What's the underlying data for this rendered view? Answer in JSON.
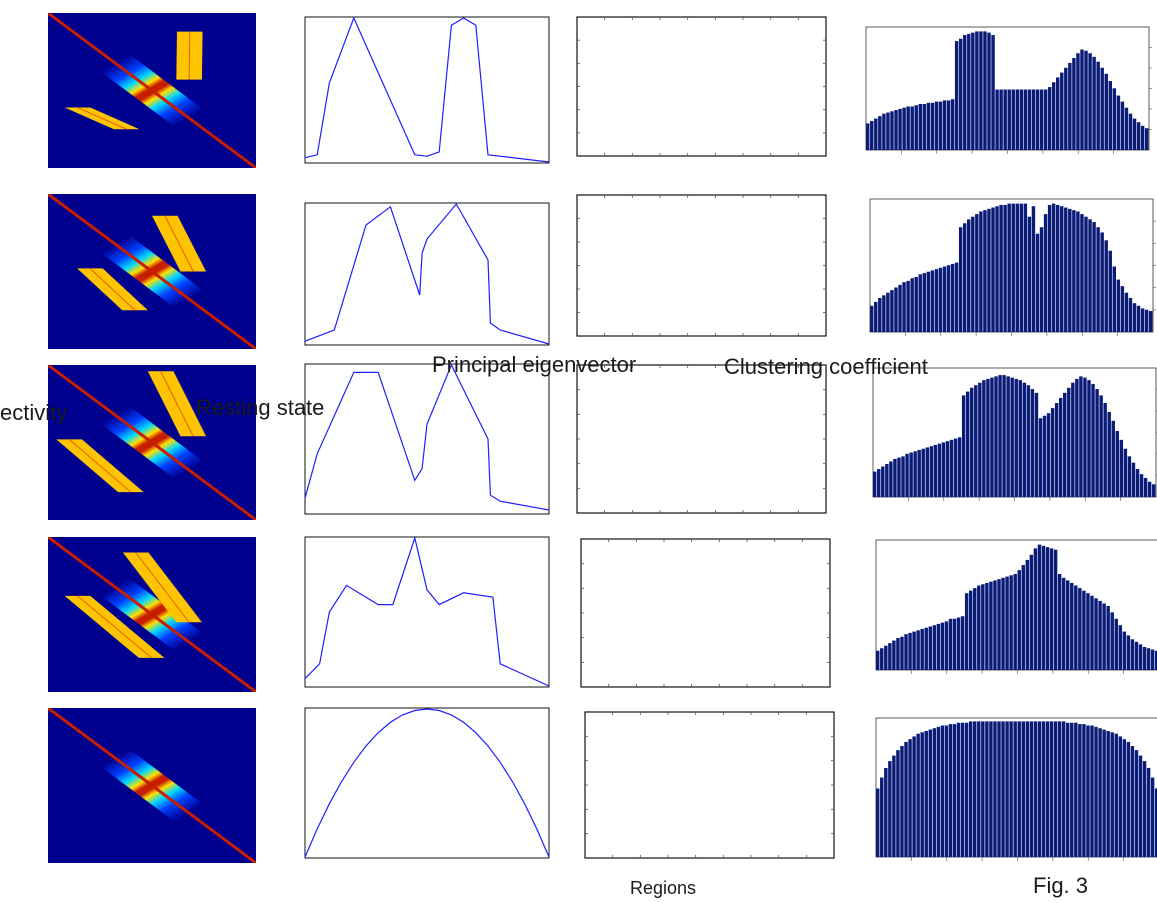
{
  "labels": {
    "connectivity": "ectivity",
    "resting_state": "Resting  state",
    "principal_eigenvector": "Principal eigenvector",
    "clustering_coefficient": "Clustering coefficient",
    "regions": "Regions",
    "fig": "Fig. 3"
  },
  "colors": {
    "matrix_background": "#00008f",
    "diagonal_band": "#c81e00",
    "block": "#ffc400",
    "eigen_line": "#1f1fff",
    "bar_fill": "#0b1c78",
    "bar_gap": "#ffffff"
  },
  "chart_data": [
    {
      "type": "line",
      "row": 1,
      "title": "",
      "xlabel": "",
      "ylabel": "",
      "x": [
        0,
        0.05,
        0.1,
        0.2,
        0.45,
        0.5,
        0.55,
        0.6,
        0.65,
        0.7,
        0.75,
        1
      ],
      "y": [
        0.03,
        0.05,
        0.55,
        1.0,
        0.05,
        0.04,
        0.07,
        0.95,
        1.0,
        0.95,
        0.05,
        0.0
      ]
    },
    {
      "type": "line",
      "row": 2,
      "title": "",
      "xlabel": "",
      "ylabel": "",
      "x": [
        0,
        0.12,
        0.25,
        0.35,
        0.47,
        0.48,
        0.5,
        0.62,
        0.75,
        0.76,
        0.8,
        1
      ],
      "y": [
        0.02,
        0.1,
        0.85,
        0.98,
        0.35,
        0.65,
        0.75,
        1.0,
        0.6,
        0.15,
        0.1,
        0.0
      ]
    },
    {
      "type": "line",
      "row": 3,
      "title": "",
      "xlabel": "",
      "ylabel": "",
      "x": [
        0,
        0.05,
        0.2,
        0.3,
        0.45,
        0.48,
        0.5,
        0.6,
        0.75,
        0.76,
        0.8,
        1
      ],
      "y": [
        0.1,
        0.4,
        0.95,
        0.95,
        0.22,
        0.3,
        0.6,
        1.0,
        0.5,
        0.12,
        0.08,
        0.02
      ]
    },
    {
      "type": "line",
      "row": 4,
      "title": "",
      "xlabel": "",
      "ylabel": "",
      "x": [
        0,
        0.06,
        0.1,
        0.17,
        0.3,
        0.36,
        0.45,
        0.5,
        0.55,
        0.65,
        0.77,
        0.8,
        1
      ],
      "y": [
        0.05,
        0.15,
        0.5,
        0.68,
        0.55,
        0.55,
        1.0,
        0.65,
        0.55,
        0.63,
        0.6,
        0.15,
        0.0
      ]
    },
    {
      "type": "line",
      "row": 5,
      "title": "",
      "xlabel": "",
      "ylabel": "",
      "x": [
        0,
        0.05,
        0.1,
        0.15,
        0.2,
        0.25,
        0.3,
        0.35,
        0.4,
        0.45,
        0.5,
        0.55,
        0.6,
        0.65,
        0.7,
        0.75,
        0.8,
        0.85,
        0.9,
        0.95,
        1
      ],
      "y": [
        0,
        0.19,
        0.36,
        0.51,
        0.64,
        0.75,
        0.84,
        0.91,
        0.96,
        0.99,
        1,
        0.99,
        0.96,
        0.91,
        0.84,
        0.75,
        0.64,
        0.51,
        0.36,
        0.19,
        0
      ]
    },
    {
      "type": "bar",
      "row": 1,
      "title": "",
      "xlabel": "",
      "ylabel": "",
      "values": [
        0.22,
        0.24,
        0.26,
        0.28,
        0.3,
        0.31,
        0.32,
        0.33,
        0.34,
        0.35,
        0.36,
        0.36,
        0.37,
        0.38,
        0.38,
        0.39,
        0.39,
        0.4,
        0.4,
        0.41,
        0.41,
        0.42,
        0.9,
        0.92,
        0.95,
        0.96,
        0.97,
        0.98,
        0.98,
        0.98,
        0.97,
        0.95,
        0.5,
        0.5,
        0.5,
        0.5,
        0.5,
        0.5,
        0.5,
        0.5,
        0.5,
        0.5,
        0.5,
        0.5,
        0.5,
        0.52,
        0.56,
        0.6,
        0.64,
        0.68,
        0.72,
        0.76,
        0.8,
        0.83,
        0.82,
        0.8,
        0.77,
        0.73,
        0.68,
        0.63,
        0.57,
        0.51,
        0.45,
        0.4,
        0.35,
        0.3,
        0.26,
        0.23,
        0.2,
        0.18
      ]
    },
    {
      "type": "bar",
      "row": 2,
      "title": "",
      "xlabel": "",
      "ylabel": "",
      "values": [
        0.2,
        0.23,
        0.26,
        0.28,
        0.3,
        0.32,
        0.34,
        0.36,
        0.38,
        0.39,
        0.41,
        0.42,
        0.44,
        0.45,
        0.46,
        0.47,
        0.48,
        0.49,
        0.5,
        0.51,
        0.52,
        0.53,
        0.8,
        0.83,
        0.86,
        0.88,
        0.9,
        0.92,
        0.93,
        0.94,
        0.95,
        0.96,
        0.97,
        0.97,
        0.98,
        0.98,
        0.98,
        0.98,
        0.98,
        0.88,
        0.96,
        0.75,
        0.8,
        0.9,
        0.97,
        0.98,
        0.97,
        0.96,
        0.95,
        0.94,
        0.93,
        0.92,
        0.9,
        0.88,
        0.86,
        0.84,
        0.8,
        0.76,
        0.7,
        0.62,
        0.5,
        0.4,
        0.35,
        0.3,
        0.26,
        0.22,
        0.2,
        0.18,
        0.17,
        0.16
      ]
    },
    {
      "type": "bar",
      "row": 3,
      "title": "",
      "xlabel": "",
      "ylabel": "",
      "values": [
        0.2,
        0.22,
        0.24,
        0.26,
        0.28,
        0.3,
        0.31,
        0.32,
        0.34,
        0.35,
        0.36,
        0.37,
        0.38,
        0.39,
        0.4,
        0.41,
        0.42,
        0.43,
        0.44,
        0.45,
        0.46,
        0.47,
        0.8,
        0.83,
        0.86,
        0.88,
        0.9,
        0.92,
        0.93,
        0.94,
        0.95,
        0.96,
        0.96,
        0.95,
        0.94,
        0.93,
        0.92,
        0.9,
        0.88,
        0.85,
        0.82,
        0.62,
        0.64,
        0.66,
        0.7,
        0.74,
        0.78,
        0.82,
        0.86,
        0.9,
        0.93,
        0.95,
        0.94,
        0.92,
        0.89,
        0.85,
        0.8,
        0.74,
        0.67,
        0.6,
        0.52,
        0.45,
        0.38,
        0.32,
        0.27,
        0.22,
        0.18,
        0.15,
        0.12,
        0.1
      ]
    },
    {
      "type": "bar",
      "row": 4,
      "title": "",
      "xlabel": "",
      "ylabel": "",
      "values": [
        0.15,
        0.17,
        0.19,
        0.21,
        0.23,
        0.25,
        0.26,
        0.28,
        0.29,
        0.3,
        0.31,
        0.32,
        0.33,
        0.34,
        0.35,
        0.36,
        0.37,
        0.38,
        0.4,
        0.4,
        0.41,
        0.42,
        0.6,
        0.62,
        0.64,
        0.66,
        0.67,
        0.68,
        0.69,
        0.7,
        0.71,
        0.72,
        0.73,
        0.74,
        0.75,
        0.78,
        0.82,
        0.86,
        0.9,
        0.95,
        0.98,
        0.97,
        0.96,
        0.95,
        0.94,
        0.75,
        0.72,
        0.7,
        0.68,
        0.66,
        0.64,
        0.62,
        0.6,
        0.58,
        0.56,
        0.54,
        0.52,
        0.5,
        0.45,
        0.4,
        0.35,
        0.3,
        0.27,
        0.24,
        0.22,
        0.2,
        0.18,
        0.17,
        0.16,
        0.15
      ]
    },
    {
      "type": "bar",
      "row": 5,
      "title": "",
      "xlabel": "",
      "ylabel": "",
      "values": [
        0.5,
        0.58,
        0.65,
        0.7,
        0.74,
        0.78,
        0.81,
        0.84,
        0.86,
        0.88,
        0.9,
        0.91,
        0.92,
        0.93,
        0.94,
        0.95,
        0.96,
        0.96,
        0.97,
        0.97,
        0.98,
        0.98,
        0.98,
        0.99,
        0.99,
        0.99,
        0.99,
        0.99,
        0.99,
        0.99,
        0.99,
        0.99,
        0.99,
        0.99,
        0.99,
        0.99,
        0.99,
        0.99,
        0.99,
        0.99,
        0.99,
        0.99,
        0.99,
        0.99,
        0.99,
        0.99,
        0.99,
        0.98,
        0.98,
        0.98,
        0.97,
        0.97,
        0.96,
        0.96,
        0.95,
        0.94,
        0.93,
        0.92,
        0.91,
        0.9,
        0.88,
        0.86,
        0.84,
        0.81,
        0.78,
        0.74,
        0.7,
        0.65,
        0.58,
        0.5
      ]
    }
  ],
  "matrices": [
    {
      "row": 1,
      "blocks": [
        [
          0.62,
          0.12,
          0.74,
          0.43
        ],
        [
          0.08,
          0.61,
          0.44,
          0.75
        ]
      ]
    },
    {
      "row": 2,
      "blocks": [
        [
          0.5,
          0.14,
          0.76,
          0.5
        ],
        [
          0.14,
          0.48,
          0.48,
          0.75
        ]
      ]
    },
    {
      "row": 3,
      "blocks": [
        [
          0.48,
          0.04,
          0.76,
          0.46
        ],
        [
          0.04,
          0.48,
          0.46,
          0.82
        ]
      ]
    },
    {
      "row": 4,
      "blocks": [
        [
          0.36,
          0.1,
          0.74,
          0.55
        ],
        [
          0.08,
          0.38,
          0.56,
          0.78
        ]
      ]
    },
    {
      "row": 5,
      "blocks": []
    }
  ]
}
